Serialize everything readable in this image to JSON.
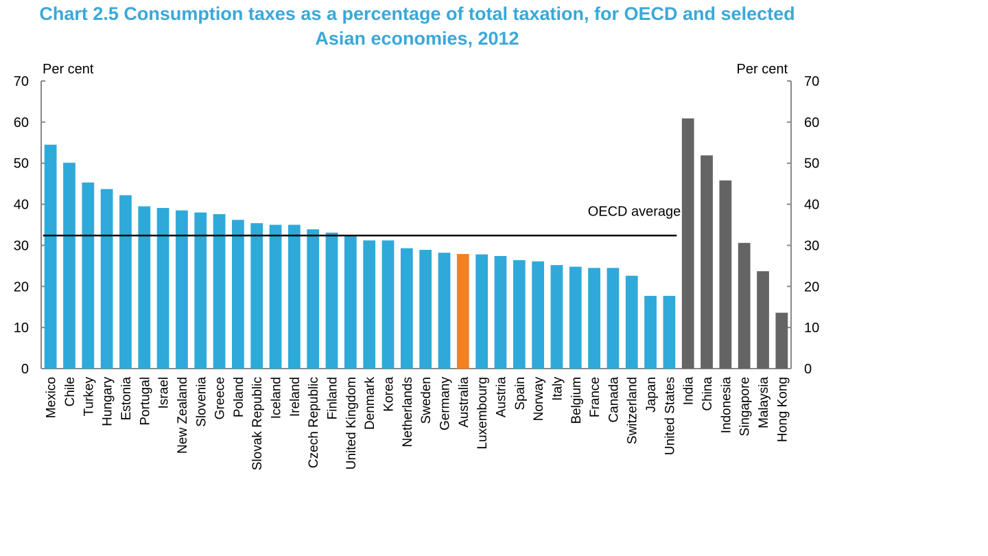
{
  "chart_data": {
    "type": "bar",
    "title": "Chart 2.5 Consumption taxes as a percentage of total taxation, for OECD and selected",
    "title_line2": "Asian economies, 2012",
    "ylabel_left": "Per cent",
    "ylabel_right": "Per cent",
    "ylim": [
      0,
      70
    ],
    "yticks": [
      0,
      10,
      20,
      30,
      40,
      50,
      60,
      70
    ],
    "grid": false,
    "categories": [
      "Mexico",
      "Chile",
      "Turkey",
      "Hungary",
      "Estonia",
      "Portugal",
      "Israel",
      "New Zealand",
      "Slovenia",
      "Greece",
      "Poland",
      "Slovak Republic",
      "Iceland",
      "Ireland",
      "Czech Republic",
      "Finland",
      "United Kingdom",
      "Denmark",
      "Korea",
      "Netherlands",
      "Sweden",
      "Germany",
      "Australia",
      "Luxembourg",
      "Austria",
      "Spain",
      "Norway",
      "Italy",
      "Belgium",
      "France",
      "Canada",
      "Switzerland",
      "Japan",
      "United States",
      "India",
      "China",
      "Indonesia",
      "Singapore",
      "Malaysia",
      "Hong Kong"
    ],
    "values": [
      54.5,
      50.1,
      45.3,
      43.7,
      42.2,
      39.5,
      39.1,
      38.5,
      38.0,
      37.6,
      36.2,
      35.4,
      35.0,
      35.0,
      33.9,
      33.1,
      32.4,
      31.2,
      31.2,
      29.3,
      28.9,
      28.2,
      27.9,
      27.8,
      27.4,
      26.4,
      26.1,
      25.2,
      24.8,
      24.5,
      24.5,
      22.6,
      17.7,
      17.7,
      60.9,
      51.9,
      45.8,
      30.6,
      23.7,
      13.6
    ],
    "bar_colors": [
      "#2fa9d9",
      "#2fa9d9",
      "#2fa9d9",
      "#2fa9d9",
      "#2fa9d9",
      "#2fa9d9",
      "#2fa9d9",
      "#2fa9d9",
      "#2fa9d9",
      "#2fa9d9",
      "#2fa9d9",
      "#2fa9d9",
      "#2fa9d9",
      "#2fa9d9",
      "#2fa9d9",
      "#2fa9d9",
      "#2fa9d9",
      "#2fa9d9",
      "#2fa9d9",
      "#2fa9d9",
      "#2fa9d9",
      "#2fa9d9",
      "#f08125",
      "#2fa9d9",
      "#2fa9d9",
      "#2fa9d9",
      "#2fa9d9",
      "#2fa9d9",
      "#2fa9d9",
      "#2fa9d9",
      "#2fa9d9",
      "#2fa9d9",
      "#2fa9d9",
      "#2fa9d9",
      "#646464",
      "#646464",
      "#646464",
      "#646464",
      "#646464",
      "#646464"
    ],
    "reference_line": {
      "label": "OECD average",
      "value": 32.4,
      "from_category": "Mexico",
      "to_category": "United States"
    }
  },
  "colors": {
    "title": "#3aa8d8",
    "oecd_bar": "#2fa9d9",
    "australia_bar": "#f08125",
    "asia_bar": "#646464",
    "axis": "#888888"
  }
}
